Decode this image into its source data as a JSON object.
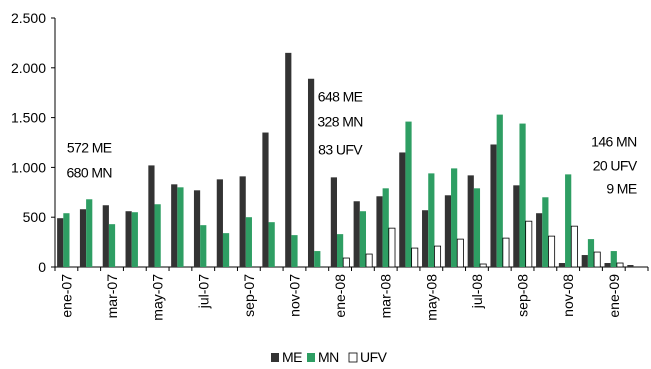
{
  "chart_data": {
    "type": "bar",
    "categories": [
      "ene-07",
      "feb-07",
      "mar-07",
      "abr-07",
      "may-07",
      "jun-07",
      "jul-07",
      "ago-07",
      "sep-07",
      "oct-07",
      "nov-07",
      "dic-07",
      "ene-08",
      "feb-08",
      "mar-08",
      "abr-08",
      "may-08",
      "jun-08",
      "jul-08",
      "ago-08",
      "sep-08",
      "oct-08",
      "nov-08",
      "dic-08",
      "ene-09",
      "feb-09"
    ],
    "tick_labels": [
      "ene-07",
      "mar-07",
      "may-07",
      "jul-07",
      "sep-07",
      "nov-07",
      "ene-08",
      "mar-08",
      "may-08",
      "jul-08",
      "sep-08",
      "nov-08",
      "ene-09"
    ],
    "series": [
      {
        "name": "ME",
        "color": "#333333",
        "values": [
          490,
          580,
          620,
          560,
          1020,
          830,
          770,
          880,
          910,
          1350,
          2150,
          1890,
          900,
          660,
          710,
          1150,
          570,
          720,
          920,
          1230,
          820,
          540,
          40,
          120,
          40,
          20
        ]
      },
      {
        "name": "MN",
        "color": "#2e9e63",
        "values": [
          540,
          680,
          430,
          550,
          630,
          800,
          420,
          340,
          500,
          450,
          320,
          160,
          330,
          560,
          790,
          1460,
          940,
          990,
          790,
          1530,
          1440,
          700,
          930,
          280,
          160,
          0
        ]
      },
      {
        "name": "UFV",
        "color": "#ffffff",
        "values": [
          0,
          0,
          0,
          0,
          0,
          0,
          0,
          0,
          0,
          0,
          0,
          0,
          90,
          130,
          390,
          190,
          210,
          280,
          30,
          290,
          460,
          310,
          410,
          150,
          40,
          0
        ]
      }
    ],
    "ylim": [
      0,
      2500
    ],
    "yticks": [
      0,
      500,
      1000,
      1500,
      2000,
      2500
    ],
    "ytick_labels": [
      "0",
      "500",
      "1.000",
      "1.500",
      "2.000",
      "2.500"
    ],
    "legend_position": "bottom",
    "annotations": [
      {
        "text": "572 ME",
        "anchor": {
          "x": "feb-07",
          "y": 1150
        }
      },
      {
        "text": "680 MN",
        "anchor": {
          "x": "feb-07",
          "y": 900
        }
      },
      {
        "text": "648 ME",
        "anchor": {
          "x": "ene-08",
          "y": 1660
        }
      },
      {
        "text": "328 MN",
        "anchor": {
          "x": "ene-08",
          "y": 1410
        }
      },
      {
        "text": "83 UFV",
        "anchor": {
          "x": "ene-08",
          "y": 1130
        }
      },
      {
        "text": "146 MN",
        "anchor": {
          "x": "feb-09",
          "y": 1210
        }
      },
      {
        "text": "20 UFV",
        "anchor": {
          "x": "feb-09",
          "y": 970
        }
      },
      {
        "text": "9 ME",
        "anchor": {
          "x": "feb-09",
          "y": 740
        }
      }
    ]
  }
}
